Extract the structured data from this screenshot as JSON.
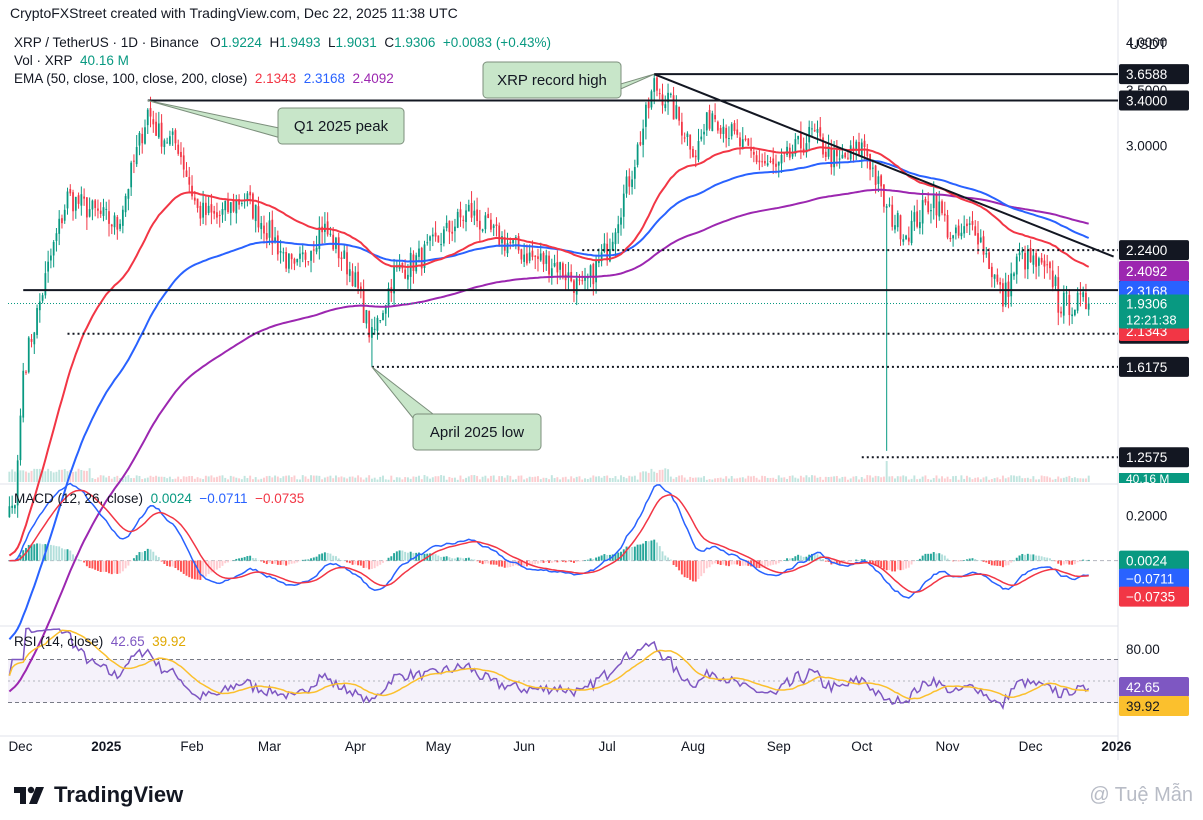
{
  "caption": "CryptoFXStreet created with TradingView.com, Dec 22, 2025 11:38 UTC",
  "symbol_line": {
    "symbol": "XRP / TetherUS · 1D · Binance",
    "o_label": "O",
    "o": "1.9224",
    "h_label": "H",
    "h": "1.9493",
    "l_label": "L",
    "l": "1.9031",
    "c_label": "C",
    "c": "1.9306",
    "change": "+0.0083 (+0.43%)"
  },
  "vol_line": {
    "label": "Vol · XRP",
    "value": "40.16 M"
  },
  "ema_line": {
    "label": "EMA (50, close, 100, close, 200, close)",
    "ema50": "2.1343",
    "ema100": "2.3168",
    "ema200": "2.4092"
  },
  "macd_line": {
    "label": "MACD (12, 26, close)",
    "hist": "0.0024",
    "macd": "−0.0711",
    "signal": "−0.0735"
  },
  "rsi_line": {
    "label": "RSI (14, close)",
    "rsi": "42.65",
    "ma": "39.92"
  },
  "currency": "USDT",
  "branding": "TradingView",
  "watermark": "@ Tuệ Mẫn",
  "colors": {
    "candle_up": "#089981",
    "candle_down": "#f23645",
    "ema50": "#f23645",
    "ema100": "#2962ff",
    "ema200": "#9c27b0",
    "rsi": "#7e57c2",
    "rsi_ma": "#fbc02d",
    "callout_bg": "#c8e6c9"
  },
  "chart_data": [
    {
      "type": "candlestick",
      "title": "XRP / TetherUS · 1D · Binance",
      "x_tick_labels": [
        "Dec",
        "2025",
        "Feb",
        "Mar",
        "Apr",
        "May",
        "Jun",
        "Jul",
        "Aug",
        "Sep",
        "Oct",
        "Nov",
        "Dec",
        "2026"
      ],
      "y_scale": "log",
      "y_tick_labels": [
        "4.0000",
        "3.5000",
        "3.0000"
      ],
      "ylim": [
        1.2,
        4.4
      ],
      "price_levels": [
        {
          "value": 3.6588,
          "label": "3.6588",
          "style": "solid"
        },
        {
          "value": 3.4,
          "label": "3.4000",
          "style": "solid"
        },
        {
          "value": 2.24,
          "label": "2.2400",
          "style": "dotted"
        },
        {
          "value": 2.004,
          "label": "2.0040",
          "style": "solid"
        },
        {
          "value": 1.774,
          "label": "1.7740",
          "style": "dotted"
        },
        {
          "value": 1.6175,
          "label": "1.6175",
          "style": "dotted"
        },
        {
          "value": 1.2575,
          "label": "1.2575",
          "style": "dotted"
        }
      ],
      "last_price": {
        "value": 1.9306,
        "label": "1.9306",
        "countdown": "12:21:38"
      },
      "ema_labels": [
        {
          "name": "EMA 200",
          "value": 2.4092,
          "label": "2.4092"
        },
        {
          "name": "EMA 100",
          "value": 2.3168,
          "label": "2.3168"
        },
        {
          "name": "EMA 50",
          "value": 2.1343,
          "label": "2.1343"
        }
      ],
      "volume_label": "40.16 M",
      "annotations": [
        {
          "text": "XRP record high",
          "value": 3.6588
        },
        {
          "text": "Q1 2025 peak",
          "value": 3.4
        },
        {
          "text": "April 2025 low",
          "value": 1.6175
        }
      ],
      "trendline": {
        "from": {
          "date": "Jul 18",
          "value": 3.6588
        },
        "to": {
          "date": "Dec 31",
          "value": 2.2
        }
      },
      "close_anchors": [
        [
          "Nov 29",
          1.1
        ],
        [
          "Dec 2",
          1.6
        ],
        [
          "Dec 12",
          2.2
        ],
        [
          "Dec 18",
          2.6
        ],
        [
          "Jan 5",
          2.4
        ],
        [
          "Jan 16",
          3.3
        ],
        [
          "Jan 20",
          3.1
        ],
        [
          "Jan 27",
          3.0
        ],
        [
          "Feb 3",
          2.5
        ],
        [
          "Feb 10",
          2.45
        ],
        [
          "Feb 20",
          2.6
        ],
        [
          "Mar 3",
          2.3
        ],
        [
          "Mar 10",
          2.1
        ],
        [
          "Mar 20",
          2.4
        ],
        [
          "Mar 31",
          2.1
        ],
        [
          "Apr 7",
          1.75
        ],
        [
          "Apr 15",
          2.1
        ],
        [
          "Apr 25",
          2.2
        ],
        [
          "May 12",
          2.5
        ],
        [
          "May 20",
          2.35
        ],
        [
          "Jun 3",
          2.2
        ],
        [
          "Jun 13",
          2.15
        ],
        [
          "Jun 22",
          2.0
        ],
        [
          "Jul 1",
          2.25
        ],
        [
          "Jul 10",
          2.8
        ],
        [
          "Jul 18",
          3.55
        ],
        [
          "Jul 23",
          3.4
        ],
        [
          "Aug 2",
          2.95
        ],
        [
          "Aug 8",
          3.3
        ],
        [
          "Aug 20",
          2.95
        ],
        [
          "Aug 31",
          2.8
        ],
        [
          "Sep 13",
          3.1
        ],
        [
          "Sep 22",
          2.85
        ],
        [
          "Oct 2",
          3.0
        ],
        [
          "Oct 10",
          2.5
        ],
        [
          "Oct 17",
          2.35
        ],
        [
          "Oct 27",
          2.6
        ],
        [
          "Nov 3",
          2.3
        ],
        [
          "Nov 11",
          2.4
        ],
        [
          "Nov 21",
          1.95
        ],
        [
          "Nov 27",
          2.2
        ],
        [
          "Dec 3",
          2.15
        ],
        [
          "Dec 10",
          2.05
        ],
        [
          "Dec 18",
          1.85
        ],
        [
          "Dec 22",
          1.9306
        ]
      ]
    },
    {
      "type": "macd",
      "title": "MACD (12, 26, close)",
      "y_tick_labels": [
        "0.2000"
      ],
      "ylim": [
        -0.28,
        0.33
      ],
      "hist_label": "0.0024",
      "macd_label": "−0.0711",
      "signal_label": "−0.0735"
    },
    {
      "type": "rsi",
      "title": "RSI (14, close)",
      "y_tick_labels": [
        "80.00"
      ],
      "bands": [
        70,
        30
      ],
      "rsi_label": "42.65",
      "ma_label": "39.92"
    }
  ]
}
